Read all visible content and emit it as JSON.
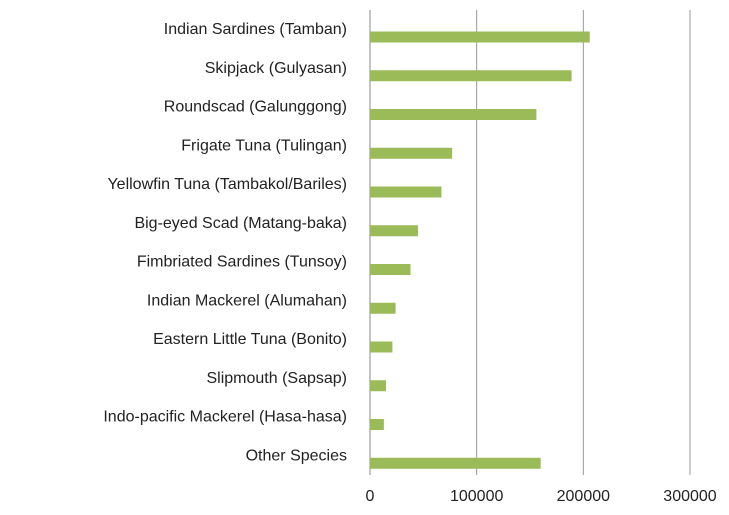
{
  "chart_data": {
    "type": "barh",
    "categories": [
      "Indian Sardines (Tamban)",
      "Skipjack (Gulyasan)",
      "Roundscad (Galunggong)",
      "Frigate Tuna (Tulingan)",
      "Yellowfin Tuna (Tambakol/Bariles)",
      "Big-eyed Scad (Matang-baka)",
      "Fimbriated Sardines (Tunsoy)",
      "Indian Mackerel (Alumahan)",
      "Eastern Little Tuna (Bonito)",
      "Slipmouth (Sapsap)",
      "Indo-pacific Mackerel (Hasa-hasa)",
      "Other Species"
    ],
    "values": [
      206000,
      189000,
      156000,
      77000,
      67000,
      45000,
      38000,
      24000,
      21000,
      15000,
      13000,
      160000
    ],
    "color": "#9bbb59",
    "xlim": [
      0,
      300000
    ],
    "xticks": [
      0,
      100000,
      200000,
      300000
    ],
    "grid": true
  }
}
